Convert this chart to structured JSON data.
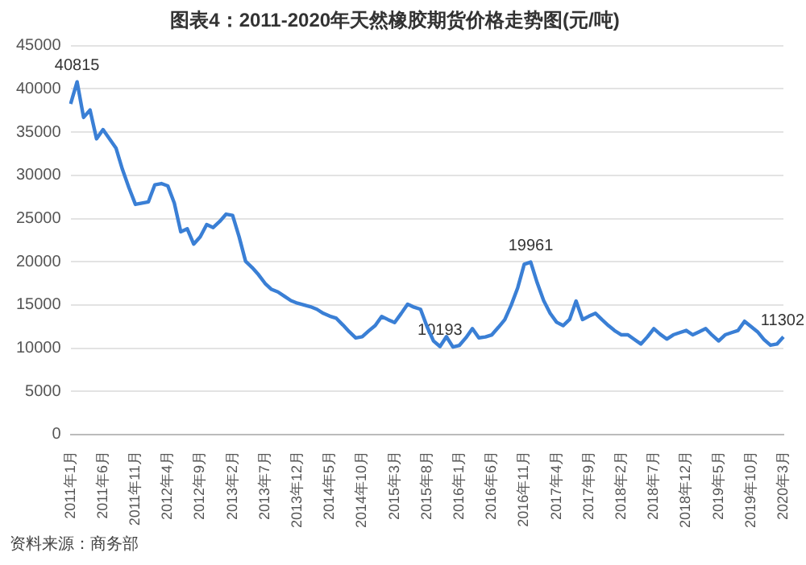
{
  "chart_data": {
    "type": "line",
    "title": "图表4：2011-2020年天然橡胶期货价格走势图(元/吨)",
    "categories": [
      "2011年1月",
      null,
      null,
      null,
      null,
      "2011年6月",
      null,
      null,
      null,
      null,
      "2011年11月",
      null,
      null,
      null,
      null,
      "2012年4月",
      null,
      null,
      null,
      null,
      "2012年9月",
      null,
      null,
      null,
      null,
      "2013年2月",
      null,
      null,
      null,
      null,
      "2013年7月",
      null,
      null,
      null,
      null,
      "2013年12月",
      null,
      null,
      null,
      null,
      "2014年5月",
      null,
      null,
      null,
      null,
      "2014年10月",
      null,
      null,
      null,
      null,
      "2015年3月",
      null,
      null,
      null,
      null,
      "2015年8月",
      null,
      null,
      null,
      null,
      "2016年1月",
      null,
      null,
      null,
      null,
      "2016年6月",
      null,
      null,
      null,
      null,
      "2016年11月",
      null,
      null,
      null,
      null,
      "2017年4月",
      null,
      null,
      null,
      null,
      "2017年9月",
      null,
      null,
      null,
      null,
      "2018年2月",
      null,
      null,
      null,
      null,
      "2018年7月",
      null,
      null,
      null,
      null,
      "2018年12月",
      null,
      null,
      null,
      null,
      "2019年5月",
      null,
      null,
      null,
      null,
      "2019年10月",
      null,
      null,
      null,
      null,
      "2020年3月"
    ],
    "series": [
      {
        "color": "#3a7fd5",
        "values": [
          38270,
          40815,
          36700,
          37560,
          34230,
          35290,
          34230,
          33160,
          30680,
          28560,
          26640,
          26790,
          26930,
          28910,
          29050,
          28770,
          26790,
          23460,
          23810,
          22040,
          22890,
          24310,
          23960,
          24660,
          25510,
          25370,
          22890,
          20050,
          19340,
          18500,
          17500,
          16800,
          16500,
          16000,
          15500,
          15200,
          15000,
          14800,
          14500,
          14030,
          13700,
          13460,
          12700,
          11900,
          11190,
          11330,
          12000,
          12610,
          13670,
          13300,
          12960,
          14000,
          15090,
          14740,
          14500,
          12500,
          10840,
          10193,
          11330,
          10130,
          10330,
          11200,
          12260,
          11190,
          11300,
          11540,
          12400,
          13300,
          15000,
          17000,
          19700,
          19961,
          17570,
          15500,
          14030,
          13000,
          12610,
          13320,
          15450,
          13320,
          13700,
          14030,
          13300,
          12610,
          12000,
          11540,
          11540,
          11000,
          10480,
          11300,
          12260,
          11600,
          11050,
          11540,
          11800,
          12050,
          11540,
          11900,
          12260,
          11500,
          10840,
          11540,
          11800,
          12050,
          13110,
          12500,
          11900,
          11000,
          10340,
          10480,
          11302
        ],
        "value_labels": [
          null,
          "40815",
          null,
          null,
          null,
          null,
          null,
          null,
          null,
          null,
          null,
          null,
          null,
          null,
          null,
          null,
          null,
          null,
          null,
          null,
          null,
          null,
          null,
          null,
          null,
          null,
          null,
          null,
          null,
          null,
          null,
          null,
          null,
          null,
          null,
          null,
          null,
          null,
          null,
          null,
          null,
          null,
          null,
          null,
          null,
          null,
          null,
          null,
          null,
          null,
          null,
          null,
          null,
          null,
          null,
          null,
          null,
          "10193",
          null,
          null,
          null,
          null,
          null,
          null,
          null,
          null,
          null,
          null,
          null,
          null,
          null,
          "19961",
          null,
          null,
          null,
          null,
          null,
          null,
          null,
          null,
          null,
          null,
          null,
          null,
          null,
          null,
          null,
          null,
          null,
          null,
          null,
          null,
          null,
          null,
          null,
          null,
          null,
          null,
          null,
          null,
          null,
          null,
          null,
          null,
          null,
          null,
          null,
          null,
          null,
          null,
          "11302"
        ]
      }
    ],
    "ylim": [
      0,
      45000
    ],
    "yticks": [
      0,
      5000,
      10000,
      15000,
      20000,
      25000,
      30000,
      35000,
      40000,
      45000
    ],
    "grid": "y",
    "marker": "none",
    "line_style": "solid",
    "legend": false,
    "annotations": [
      "资料来源：商务部"
    ]
  }
}
